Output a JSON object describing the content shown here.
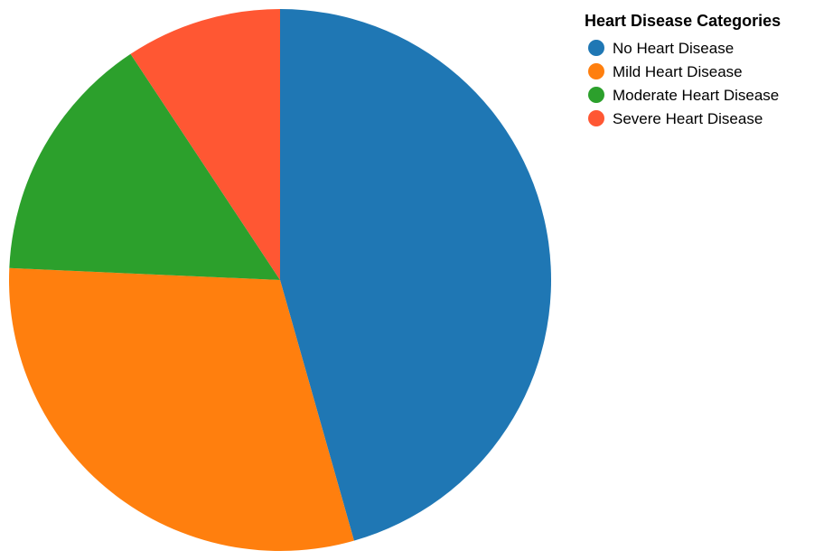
{
  "chart_data": {
    "type": "pie",
    "legend_title": "Heart Disease Categories",
    "legend_position": "top-right",
    "categories": [
      "No Heart Disease",
      "Mild Heart Disease",
      "Moderate Heart Disease",
      "Severe Heart Disease"
    ],
    "values": [
      45.6,
      30.1,
      15.0,
      9.3
    ],
    "colors": [
      "#1f77b4",
      "#ff7f0e",
      "#2ca02c",
      "#ff5733"
    ]
  }
}
